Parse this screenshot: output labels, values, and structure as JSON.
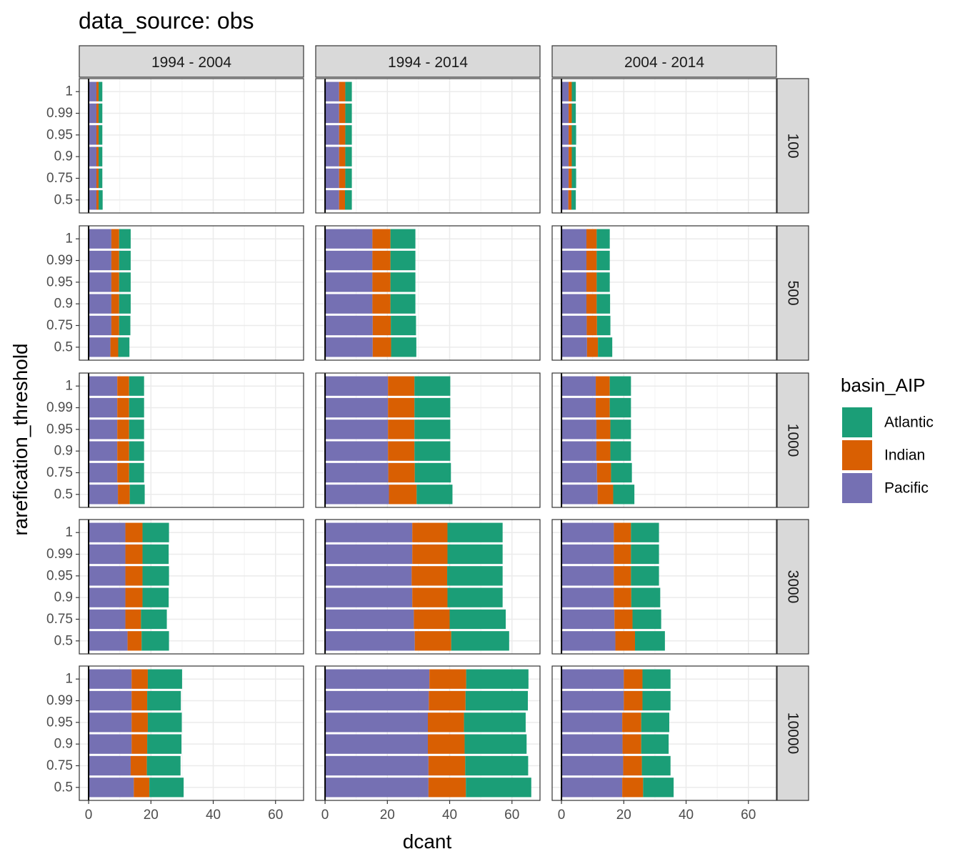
{
  "chart_data": {
    "type": "bar",
    "orientation": "horizontal",
    "stacked": true,
    "title": "data_source: obs",
    "xlabel": "dcant",
    "ylabel": "rarefication_threshold",
    "xlim": [
      -3,
      69
    ],
    "xticks": [
      "0",
      "20",
      "40",
      "60"
    ],
    "xtick_values": [
      0,
      20,
      40,
      60
    ],
    "categories": [
      "1",
      "0.99",
      "0.95",
      "0.9",
      "0.75",
      "0.5"
    ],
    "col_facets": [
      "1994 - 2004",
      "1994 - 2014",
      "2004 - 2014"
    ],
    "row_facets": [
      "100",
      "500",
      "1000",
      "3000",
      "10000"
    ],
    "grid": true,
    "legend": {
      "title": "basin_AIP",
      "position": "right",
      "entries": [
        "Atlantic",
        "Indian",
        "Pacific"
      ]
    },
    "colors": {
      "Atlantic": "#1b9e77",
      "Indian": "#d95f02",
      "Pacific": "#7570b3"
    },
    "stack_order": [
      "Pacific",
      "Indian",
      "Atlantic"
    ],
    "panels": [
      {
        "row": "100",
        "col": "1994 - 2004",
        "Pacific": [
          2.5,
          2.5,
          2.5,
          2.5,
          2.5,
          2.5
        ],
        "Indian": [
          0.7,
          0.7,
          0.7,
          0.7,
          0.7,
          0.7
        ],
        "Atlantic": [
          1.2,
          1.2,
          1.2,
          1.2,
          1.2,
          1.3
        ]
      },
      {
        "row": "100",
        "col": "1994 - 2014",
        "Pacific": [
          4.5,
          4.5,
          4.5,
          4.5,
          4.5,
          4.5
        ],
        "Indian": [
          2,
          2,
          2,
          2,
          2,
          1.9
        ],
        "Atlantic": [
          2.1,
          2.1,
          2.1,
          2.1,
          2.1,
          2.2
        ]
      },
      {
        "row": "100",
        "col": "2004 - 2014",
        "Pacific": [
          2.3,
          2.3,
          2.3,
          2.3,
          2.3,
          2.2
        ],
        "Indian": [
          1,
          1,
          1,
          1,
          1,
          1
        ],
        "Atlantic": [
          1.3,
          1.3,
          1.4,
          1.3,
          1.4,
          1.4
        ]
      },
      {
        "row": "500",
        "col": "1994 - 2004",
        "Pacific": [
          7.3,
          7.3,
          7.3,
          7.3,
          7.3,
          7
        ],
        "Indian": [
          2.5,
          2.5,
          2.5,
          2.5,
          2.5,
          2.5
        ],
        "Atlantic": [
          3.7,
          3.7,
          3.7,
          3.7,
          3.6,
          3.6
        ]
      },
      {
        "row": "500",
        "col": "1994 - 2014",
        "Pacific": [
          15.2,
          15.2,
          15.2,
          15.2,
          15.3,
          15.3
        ],
        "Indian": [
          5.8,
          5.8,
          5.8,
          5.8,
          5.8,
          5.9
        ],
        "Atlantic": [
          8,
          8,
          8,
          8,
          8.1,
          8.1
        ]
      },
      {
        "row": "500",
        "col": "2004 - 2014",
        "Pacific": [
          8,
          8,
          8,
          8,
          8.1,
          8.2
        ],
        "Indian": [
          3.3,
          3.3,
          3.3,
          3.3,
          3.3,
          3.5
        ],
        "Atlantic": [
          4.2,
          4.2,
          4.2,
          4.3,
          4.3,
          4.6
        ]
      },
      {
        "row": "1000",
        "col": "1994 - 2004",
        "Pacific": [
          9.2,
          9.2,
          9.2,
          9.2,
          9.2,
          9.4
        ],
        "Indian": [
          3.8,
          3.8,
          3.8,
          3.8,
          3.8,
          3.8
        ],
        "Atlantic": [
          4.8,
          4.8,
          4.8,
          4.8,
          4.8,
          4.8
        ]
      },
      {
        "row": "1000",
        "col": "1994 - 2014",
        "Pacific": [
          20.2,
          20.2,
          20.2,
          20.2,
          20.3,
          20.5
        ],
        "Indian": [
          8.5,
          8.5,
          8.5,
          8.5,
          8.5,
          8.9
        ],
        "Atlantic": [
          11.5,
          11.5,
          11.5,
          11.5,
          11.6,
          11.5
        ]
      },
      {
        "row": "1000",
        "col": "2004 - 2014",
        "Pacific": [
          11,
          11,
          11.2,
          11.2,
          11.4,
          11.6
        ],
        "Indian": [
          4.5,
          4.5,
          4.5,
          4.5,
          4.5,
          5
        ],
        "Atlantic": [
          6.8,
          6.8,
          6.6,
          6.6,
          6.7,
          6.8
        ]
      },
      {
        "row": "3000",
        "col": "1994 - 2004",
        "Pacific": [
          11.8,
          11.8,
          11.8,
          11.8,
          11.8,
          12.5
        ],
        "Indian": [
          5.5,
          5.5,
          5.5,
          5.5,
          5,
          4.5
        ],
        "Atlantic": [
          8.5,
          8.4,
          8.5,
          8.4,
          8.3,
          8.8
        ]
      },
      {
        "row": "3000",
        "col": "1994 - 2014",
        "Pacific": [
          28,
          28,
          27.8,
          28,
          28.5,
          28.8
        ],
        "Indian": [
          11.3,
          11.3,
          11.4,
          11.3,
          11.5,
          11.7
        ],
        "Atlantic": [
          17.7,
          17.7,
          17.8,
          17.7,
          18,
          18.6
        ]
      },
      {
        "row": "3000",
        "col": "2004 - 2014",
        "Pacific": [
          16.8,
          16.8,
          16.8,
          16.8,
          17,
          17.3
        ],
        "Indian": [
          5.5,
          5.5,
          5.5,
          5.6,
          5.8,
          6.3
        ],
        "Atlantic": [
          9,
          9,
          9,
          9.3,
          9.2,
          9.6
        ]
      },
      {
        "row": "10000",
        "col": "1994 - 2004",
        "Pacific": [
          13.8,
          13.8,
          13.8,
          13.8,
          13.5,
          14.5
        ],
        "Indian": [
          5.2,
          5,
          5.2,
          5,
          5.2,
          5
        ],
        "Atlantic": [
          11,
          10.8,
          10.9,
          11,
          10.8,
          11
        ]
      },
      {
        "row": "10000",
        "col": "1994 - 2014",
        "Pacific": [
          33.5,
          33.3,
          33,
          33,
          33.2,
          33.2
        ],
        "Indian": [
          11.8,
          11.8,
          11.6,
          11.8,
          11.8,
          12
        ],
        "Atlantic": [
          20,
          20,
          19.8,
          19.9,
          20.2,
          21
        ]
      },
      {
        "row": "10000",
        "col": "2004 - 2014",
        "Pacific": [
          20,
          20,
          19.5,
          19.6,
          19.8,
          19.5
        ],
        "Indian": [
          6,
          6,
          6.1,
          6,
          6,
          6.7
        ],
        "Atlantic": [
          9,
          9,
          9,
          8.8,
          9.2,
          9.8
        ]
      }
    ]
  }
}
